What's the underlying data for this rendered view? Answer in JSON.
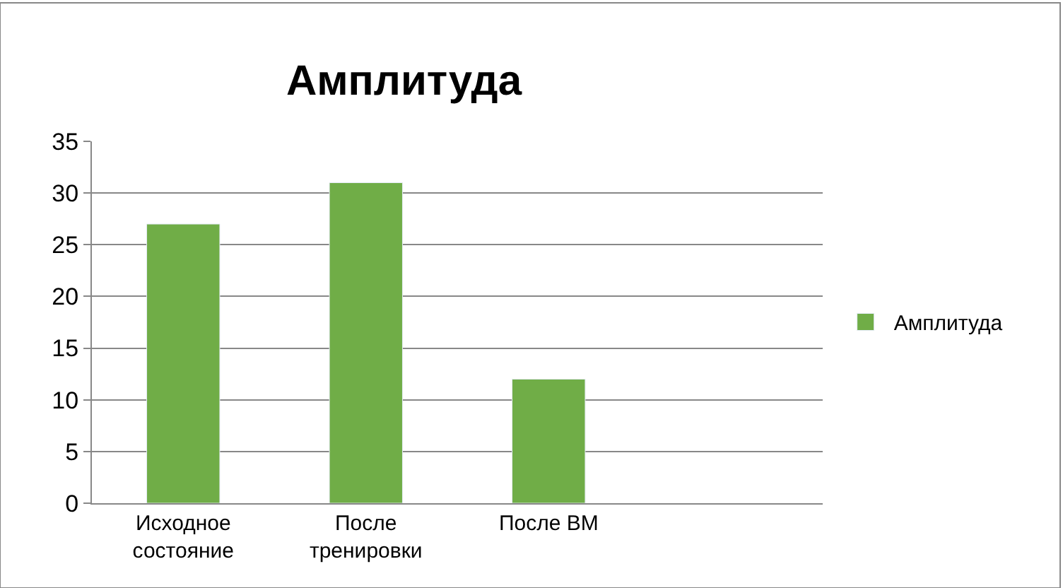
{
  "chart_data": {
    "type": "bar",
    "title": "Амплитуда",
    "categories": [
      "Исходное\nсостояние",
      "После\nтренировки",
      "После ВМ",
      null
    ],
    "series": [
      {
        "name": "Амплитуда",
        "color": "#70ad47",
        "values": [
          27,
          31,
          12,
          null
        ]
      }
    ],
    "ylim": [
      0,
      35
    ],
    "yticks": [
      0,
      5,
      10,
      15,
      20,
      25,
      30,
      35
    ],
    "grid": "y",
    "legend": "right"
  }
}
